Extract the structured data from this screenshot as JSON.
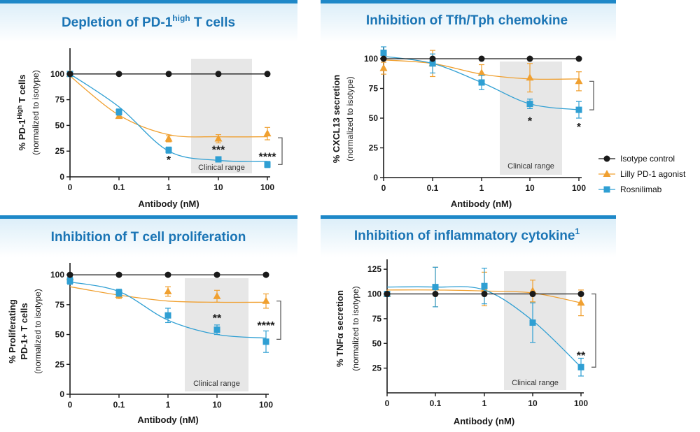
{
  "colors": {
    "accent_bar": "#1e88c8",
    "header_gradient_top": "#d9edf8",
    "title": "#1b75b5",
    "isotype": "#1a1a1a",
    "lilly": "#f0a030",
    "rosnilimab": "#2f9fd3",
    "clinical_band": "#e7e7e7",
    "axis": "#1a1a1a",
    "bracket": "#555555"
  },
  "legend": {
    "items": [
      {
        "label": "Isotype control",
        "series": "isotype",
        "marker": "circle"
      },
      {
        "label": "Lilly PD-1 agonist",
        "series": "lilly",
        "marker": "triangle"
      },
      {
        "label": "Rosnilimab",
        "series": "rosnilimab",
        "marker": "square"
      }
    ]
  },
  "chart_data": [
    {
      "type": "line",
      "title_main": "Depletion of PD-1",
      "title_sup": "high",
      "title_end": " T cells",
      "ylabel_main": "% PD-1",
      "ylabel_sup": "High",
      "ylabel_end": " T cells",
      "ylabel2": "(normalized to isotype)",
      "xlabel": "Antibody (nM)",
      "categories": [
        "0",
        "0.1",
        "1",
        "10",
        "100"
      ],
      "yticks": [
        0,
        25,
        50,
        75,
        100
      ],
      "ylim": [
        0,
        125
      ],
      "band_text": "Clinical range",
      "series": [
        {
          "key": "isotype",
          "values": [
            100,
            100,
            100,
            100,
            100
          ],
          "err": [
            0,
            0,
            0,
            0,
            0
          ],
          "fit": [
            100,
            100,
            100,
            100,
            100
          ]
        },
        {
          "key": "lilly",
          "values": [
            100,
            59,
            37,
            37,
            42
          ],
          "err": [
            0,
            2,
            3,
            4,
            6
          ],
          "fit": [
            98,
            60,
            41,
            39,
            39
          ]
        },
        {
          "key": "rosnilimab",
          "values": [
            100,
            63,
            26,
            17,
            12
          ],
          "err": [
            0,
            3,
            3,
            2,
            3
          ],
          "fit": [
            100,
            68,
            25,
            16,
            15
          ]
        }
      ],
      "annotations": [
        {
          "x": "1",
          "y": 17,
          "text": "*"
        },
        {
          "x": "10",
          "y": 27,
          "text": "***"
        },
        {
          "x": "100",
          "y": 20,
          "text": "****"
        }
      ],
      "bracket": [
        38,
        12
      ]
    },
    {
      "type": "line",
      "title_main": "Inhibition of Tfh/Tph chemokine",
      "title_sup": "",
      "title_end": "",
      "ylabel_main": "% CXCL13 secretion",
      "ylabel_sup": "",
      "ylabel_end": "",
      "ylabel2": "(normalized to isotype)",
      "xlabel": "Antibody (nM)",
      "categories": [
        "0",
        "0.1",
        "1",
        "10",
        "100"
      ],
      "yticks": [
        0,
        25,
        50,
        75,
        100
      ],
      "ylim": [
        0,
        110
      ],
      "band_text": "Clinical range",
      "series": [
        {
          "key": "isotype",
          "values": [
            100,
            100,
            100,
            100,
            100
          ],
          "err": [
            0,
            0,
            0,
            0,
            0
          ],
          "fit": [
            100,
            100,
            100,
            100,
            100
          ]
        },
        {
          "key": "lilly",
          "values": [
            92,
            96,
            88,
            84,
            81
          ],
          "err": [
            5,
            11,
            7,
            12,
            8
          ],
          "fit": [
            99,
            96,
            87,
            83,
            83
          ]
        },
        {
          "key": "rosnilimab",
          "values": [
            105,
            96,
            80,
            62,
            57
          ],
          "err": [
            5,
            8,
            6,
            4,
            7
          ],
          "fit": [
            102,
            96,
            80,
            62,
            57
          ]
        }
      ],
      "annotations": [
        {
          "x": "10",
          "y": 48,
          "text": "*"
        },
        {
          "x": "100",
          "y": 43,
          "text": "*"
        }
      ],
      "bracket": [
        81,
        57
      ]
    },
    {
      "type": "line",
      "title_main": "Inhibition of T cell proliferation",
      "title_sup": "",
      "title_end": "",
      "ylabel_main": "% Proliferating",
      "ylabel_line2": "PD-1+ T cells",
      "ylabel_sup": "",
      "ylabel_end": "",
      "ylabel2": "(normalized to isotype)",
      "xlabel": "Antibody (nM)",
      "categories": [
        "0",
        "0.1",
        "1",
        "10",
        "100"
      ],
      "yticks": [
        0,
        25,
        50,
        75,
        100
      ],
      "ylim": [
        0,
        110
      ],
      "band_text": "Clinical range",
      "series": [
        {
          "key": "isotype",
          "values": [
            100,
            100,
            100,
            100,
            100
          ],
          "err": [
            0,
            0,
            0,
            0,
            0
          ],
          "fit": [
            100,
            100,
            100,
            100,
            100
          ]
        },
        {
          "key": "lilly",
          "values": [
            98,
            83,
            86,
            82,
            78
          ],
          "err": [
            2,
            3,
            4,
            5,
            6
          ],
          "fit": [
            90,
            83,
            78,
            77,
            77
          ]
        },
        {
          "key": "rosnilimab",
          "values": [
            95,
            85,
            66,
            54,
            44
          ],
          "err": [
            3,
            3,
            6,
            4,
            9
          ],
          "fit": [
            94,
            86,
            62,
            50,
            47
          ]
        }
      ],
      "annotations": [
        {
          "x": "10",
          "y": 64,
          "text": "**"
        },
        {
          "x": "100",
          "y": 58,
          "text": "****"
        }
      ],
      "bracket": [
        78,
        46
      ]
    },
    {
      "type": "line",
      "title_main": "Inhibition of inflammatory cytokine",
      "title_sup": "1",
      "title_end": "",
      "ylabel_main": "% TNFα secretion",
      "ylabel_sup": "",
      "ylabel_end": "",
      "ylabel2": "(normalized to isotype)",
      "xlabel": "Antibody (nM)",
      "categories": [
        "0",
        "0.1",
        "1",
        "10",
        "100"
      ],
      "yticks": [
        25,
        50,
        75,
        100,
        125
      ],
      "ylim": [
        0,
        135
      ],
      "band_text": "Clinical range",
      "series": [
        {
          "key": "isotype",
          "values": [
            100,
            100,
            100,
            100,
            100
          ],
          "err": [
            0,
            0,
            0,
            0,
            0
          ],
          "fit": [
            100,
            100,
            100,
            100,
            100
          ]
        },
        {
          "key": "lilly",
          "values": [
            100,
            107,
            105,
            103,
            91
          ],
          "err": [
            0,
            20,
            17,
            11,
            13
          ],
          "fit": [
            104,
            104,
            103,
            101,
            91
          ]
        },
        {
          "key": "rosnilimab",
          "values": [
            100,
            107,
            108,
            71,
            26
          ],
          "err": [
            0,
            20,
            18,
            20,
            9
          ],
          "fit": [
            107,
            107,
            104,
            73,
            26
          ]
        }
      ],
      "annotations": [
        {
          "x": "100",
          "y": 38,
          "text": "**"
        }
      ],
      "bracket": [
        100,
        26
      ]
    }
  ]
}
